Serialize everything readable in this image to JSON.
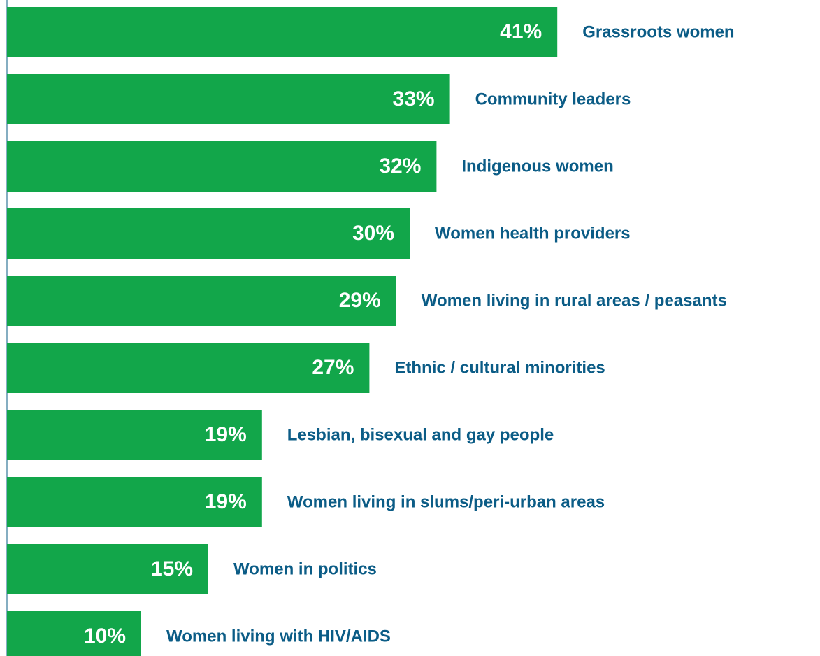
{
  "chart_data": {
    "type": "barh",
    "categories": [
      "Grassroots women",
      "Community leaders",
      "Indigenous women",
      "Women health providers",
      "Women living in rural areas / peasants",
      "Ethnic / cultural minorities",
      "Lesbian, bisexual and gay people",
      "Women living in slums/peri-urban areas",
      "Women in politics",
      "Women living with HIV/AIDS"
    ],
    "values": [
      41,
      33,
      32,
      30,
      29,
      27,
      19,
      19,
      15,
      10
    ],
    "value_labels": [
      "41%",
      "33%",
      "32%",
      "30%",
      "29%",
      "27%",
      "19%",
      "19%",
      "15%",
      "10%"
    ],
    "color": "#12a64a"
  }
}
